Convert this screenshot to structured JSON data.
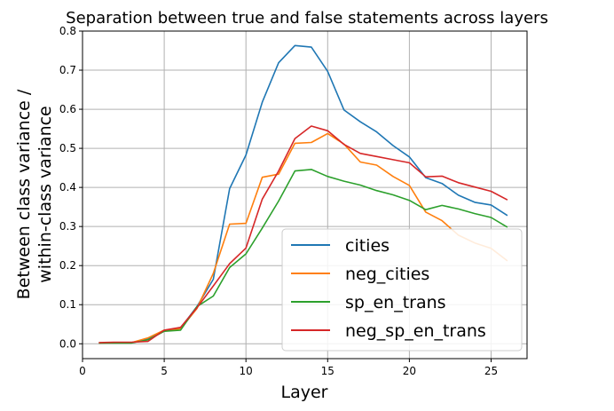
{
  "chart_data": {
    "type": "line",
    "title": "Separation between true and false statements across layers",
    "xlabel": "Layer",
    "ylabel_lines": [
      "Between class variance /",
      "within-class variance"
    ],
    "xlim": [
      0,
      27.2
    ],
    "ylim": [
      -0.038,
      0.8
    ],
    "xticks": [
      0,
      5,
      10,
      15,
      20,
      25
    ],
    "yticks": [
      0.0,
      0.1,
      0.2,
      0.3,
      0.4,
      0.5,
      0.6,
      0.7,
      0.8
    ],
    "xtick_labels": [
      "0",
      "5",
      "10",
      "15",
      "20",
      "25"
    ],
    "ytick_labels": [
      "0.0",
      "0.1",
      "0.2",
      "0.3",
      "0.4",
      "0.5",
      "0.6",
      "0.7",
      "0.8"
    ],
    "grid": true,
    "legend_position": "lower-right",
    "x": [
      1,
      2,
      3,
      4,
      5,
      6,
      7,
      8,
      9,
      10,
      11,
      12,
      13,
      14,
      15,
      16,
      17,
      18,
      19,
      20,
      21,
      22,
      23,
      24,
      25,
      26
    ],
    "series": [
      {
        "name": "cities",
        "color": "#1f77b4",
        "values": [
          0.002,
          0.003,
          0.003,
          0.012,
          0.033,
          0.04,
          0.095,
          0.165,
          0.397,
          0.483,
          0.618,
          0.719,
          0.763,
          0.759,
          0.697,
          0.598,
          0.568,
          0.542,
          0.507,
          0.478,
          0.425,
          0.41,
          0.38,
          0.362,
          0.355,
          0.328
        ]
      },
      {
        "name": "neg_cities",
        "color": "#ff7f0e",
        "values": [
          0.002,
          0.003,
          0.003,
          0.015,
          0.035,
          0.038,
          0.09,
          0.18,
          0.306,
          0.308,
          0.426,
          0.434,
          0.513,
          0.515,
          0.538,
          0.511,
          0.465,
          0.457,
          0.428,
          0.405,
          0.337,
          0.315,
          0.278,
          0.258,
          0.244,
          0.212
        ]
      },
      {
        "name": "sp_en_trans",
        "color": "#2ca02c",
        "values": [
          0.002,
          0.002,
          0.002,
          0.01,
          0.032,
          0.035,
          0.095,
          0.122,
          0.195,
          0.23,
          0.296,
          0.365,
          0.442,
          0.446,
          0.428,
          0.416,
          0.406,
          0.392,
          0.381,
          0.367,
          0.343,
          0.354,
          0.345,
          0.333,
          0.323,
          0.298
        ]
      },
      {
        "name": "neg_sp_en_trans",
        "color": "#d62728",
        "values": [
          0.003,
          0.004,
          0.004,
          0.006,
          0.035,
          0.042,
          0.092,
          0.148,
          0.205,
          0.245,
          0.37,
          0.442,
          0.525,
          0.557,
          0.545,
          0.51,
          0.487,
          0.479,
          0.471,
          0.463,
          0.427,
          0.429,
          0.412,
          0.401,
          0.39,
          0.368
        ]
      }
    ]
  }
}
